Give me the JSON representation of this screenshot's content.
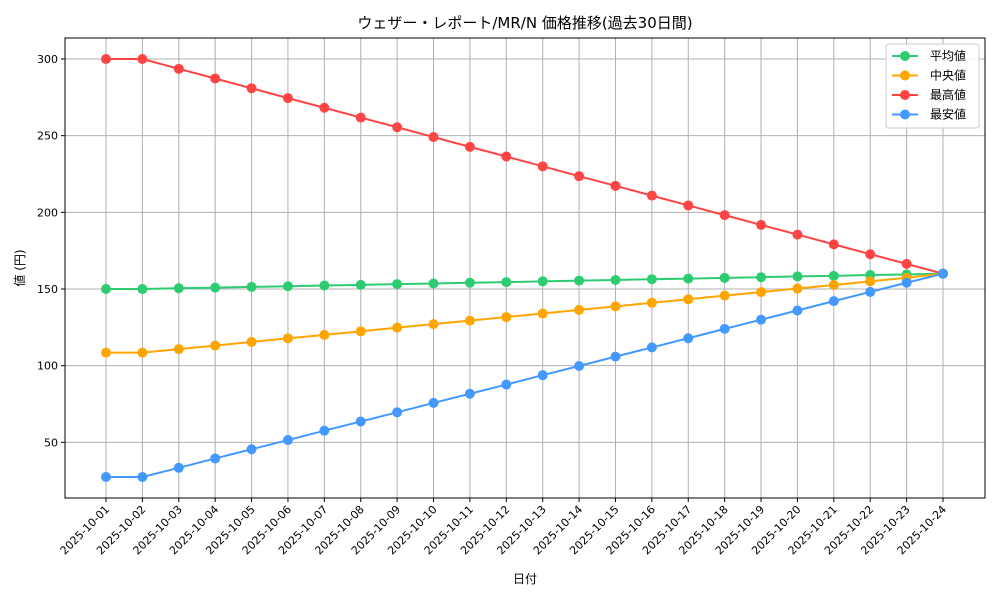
{
  "chart_data": {
    "type": "line",
    "title": "ウェザー・レポート/MR/N 価格推移(過去30日間)",
    "xlabel": "日付",
    "ylabel": "値 (円)",
    "ylim": [
      13.7,
      313.7
    ],
    "yticks": [
      50,
      100,
      150,
      200,
      250,
      300
    ],
    "grid": true,
    "legend_position": "top-right",
    "x": [
      "2025-10-01",
      "2025-10-02",
      "2025-10-03",
      "2025-10-04",
      "2025-10-05",
      "2025-10-06",
      "2025-10-07",
      "2025-10-08",
      "2025-10-09",
      "2025-10-10",
      "2025-10-11",
      "2025-10-12",
      "2025-10-13",
      "2025-10-14",
      "2025-10-15",
      "2025-10-16",
      "2025-10-17",
      "2025-10-18",
      "2025-10-19",
      "2025-10-20",
      "2025-10-21",
      "2025-10-22",
      "2025-10-23",
      "2025-10-24"
    ],
    "series": [
      {
        "name": "平均値",
        "color": "#2ecc71",
        "values": [
          150,
          150,
          150.5,
          150.9,
          151.4,
          151.8,
          152.3,
          152.7,
          153.2,
          153.6,
          154.1,
          154.5,
          155.0,
          155.5,
          155.9,
          156.4,
          156.8,
          157.3,
          157.7,
          158.2,
          158.6,
          159.1,
          159.5,
          160
        ]
      },
      {
        "name": "中央値",
        "color": "#ffa500",
        "values": [
          108.5,
          108.5,
          110.8,
          113.1,
          115.5,
          117.8,
          120.1,
          122.4,
          124.8,
          127.1,
          129.4,
          131.7,
          134.0,
          136.4,
          138.7,
          141.0,
          143.3,
          145.7,
          148.0,
          150.3,
          152.6,
          155.0,
          157.3,
          160
        ]
      },
      {
        "name": "最高値",
        "color": "#ff4444",
        "values": [
          300,
          300,
          293.6,
          287.3,
          280.9,
          274.5,
          268.2,
          261.8,
          255.5,
          249.1,
          242.7,
          236.4,
          230.0,
          223.6,
          217.3,
          210.9,
          204.5,
          198.2,
          191.8,
          185.5,
          179.1,
          172.7,
          166.4,
          160
        ]
      },
      {
        "name": "最安値",
        "color": "#4499ff",
        "values": [
          27.4,
          27.4,
          33.4,
          39.5,
          45.5,
          51.5,
          57.6,
          63.6,
          69.6,
          75.7,
          81.7,
          87.7,
          93.8,
          99.8,
          105.9,
          111.9,
          117.9,
          124.0,
          130.0,
          136.0,
          142.1,
          148.1,
          154.1,
          160
        ]
      }
    ]
  }
}
